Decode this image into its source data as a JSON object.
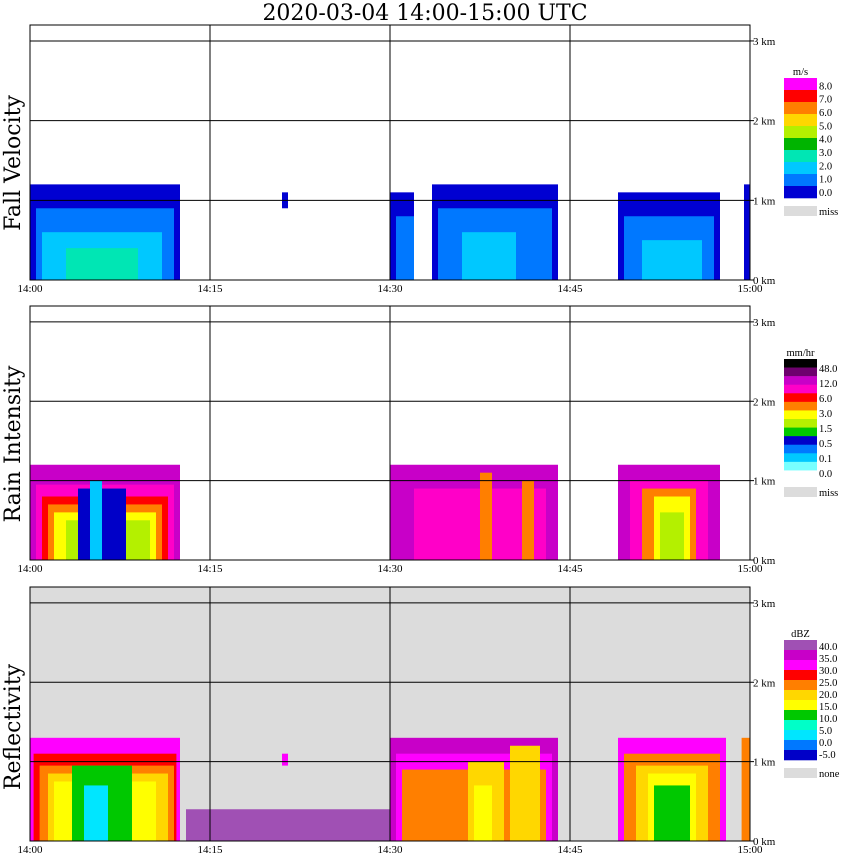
{
  "title": "2020-03-04   14:00-15:00 UTC",
  "colors": {
    "missing": "#dcdcdc",
    "grid": "#000000"
  },
  "chart_data": [
    {
      "type": "heatmap",
      "ylabel": "Fall Velocity",
      "unit": "m/s",
      "x_ticks": [
        "14:00",
        "14:15",
        "14:30",
        "14:45",
        "15:00"
      ],
      "y_ticks": [
        "0 km",
        "1 km",
        "2 km",
        "3 km"
      ],
      "ylim": [
        0,
        3.2
      ],
      "background": "#ffffff",
      "colorbar": {
        "labels": [
          "8.0",
          "7.0",
          "6.0",
          "5.0",
          "4.0",
          "3.0",
          "2.0",
          "1.0",
          "0.0",
          "miss"
        ],
        "colors": [
          "#ff00ff",
          "#ff0000",
          "#ff7f00",
          "#ffd700",
          "#b4f000",
          "#00b400",
          "#00e6b4",
          "#00c8ff",
          "#0078ff",
          "#0000d2",
          "#dcdcdc"
        ]
      },
      "cells": [
        {
          "x0": 0.0,
          "x1": 12.5,
          "y1": 1.2,
          "level": 1
        },
        {
          "x0": 0.5,
          "x1": 12.0,
          "y1": 0.9,
          "level": 2
        },
        {
          "x0": 1.0,
          "x1": 11.0,
          "y1": 0.6,
          "level": 3
        },
        {
          "x0": 3.0,
          "x1": 9.0,
          "y1": 0.4,
          "level": 4
        },
        {
          "x0": 21.0,
          "x1": 21.5,
          "y0": 0.9,
          "y1": 1.1,
          "level": 1
        },
        {
          "x0": 30.0,
          "x1": 32.0,
          "y1": 1.1,
          "level": 1
        },
        {
          "x0": 30.5,
          "x1": 32.0,
          "y1": 0.8,
          "level": 2
        },
        {
          "x0": 33.5,
          "x1": 44.0,
          "y1": 1.2,
          "level": 1
        },
        {
          "x0": 34.0,
          "x1": 43.5,
          "y1": 0.9,
          "level": 2
        },
        {
          "x0": 36.0,
          "x1": 40.5,
          "y1": 0.6,
          "level": 3
        },
        {
          "x0": 49.0,
          "x1": 57.5,
          "y1": 1.1,
          "level": 1
        },
        {
          "x0": 49.5,
          "x1": 57.0,
          "y1": 0.8,
          "level": 2
        },
        {
          "x0": 51.0,
          "x1": 56.0,
          "y1": 0.5,
          "level": 3
        },
        {
          "x0": 59.5,
          "x1": 60.0,
          "y1": 1.2,
          "level": 1
        }
      ]
    },
    {
      "type": "heatmap",
      "ylabel": "Rain Intensity",
      "unit": "mm/hr",
      "x_ticks": [
        "14:00",
        "14:15",
        "14:30",
        "14:45",
        "15:00"
      ],
      "y_ticks": [
        "0 km",
        "1 km",
        "2 km",
        "3 km"
      ],
      "ylim": [
        0,
        3.2
      ],
      "background": "#ffffff",
      "colorbar": {
        "labels": [
          "48.0",
          "12.0",
          "6.0",
          "3.0",
          "1.5",
          "0.5",
          "0.1",
          "0.0",
          "miss"
        ],
        "colors": [
          "#000000",
          "#6e006e",
          "#c800c8",
          "#ff00c8",
          "#ff0000",
          "#ff7f00",
          "#ffff00",
          "#b4f000",
          "#00c800",
          "#0000c8",
          "#0078ff",
          "#00c8ff",
          "#78ffff",
          "#ffffff",
          "#dcdcdc"
        ]
      },
      "cells": [
        {
          "x0": 0.0,
          "x1": 12.5,
          "y1": 1.2,
          "level": 12
        },
        {
          "x0": 0.5,
          "x1": 12.0,
          "y1": 0.95,
          "level": 11
        },
        {
          "x0": 1.0,
          "x1": 11.5,
          "y1": 0.8,
          "level": 10
        },
        {
          "x0": 1.5,
          "x1": 11.0,
          "y1": 0.7,
          "level": 9
        },
        {
          "x0": 2.0,
          "x1": 10.5,
          "y1": 0.6,
          "level": 8
        },
        {
          "x0": 3.0,
          "x1": 10.0,
          "y1": 0.5,
          "level": 7
        },
        {
          "x0": 4.0,
          "x1": 8.0,
          "y1": 0.9,
          "level": 5
        },
        {
          "x0": 5.0,
          "x1": 6.0,
          "y1": 1.0,
          "level": 3
        },
        {
          "x0": 30.0,
          "x1": 44.0,
          "y1": 1.2,
          "level": 12
        },
        {
          "x0": 32.0,
          "x1": 43.0,
          "y1": 0.9,
          "level": 11
        },
        {
          "x0": 37.5,
          "x1": 38.5,
          "y1": 1.1,
          "level": 9
        },
        {
          "x0": 41.0,
          "x1": 42.0,
          "y1": 1.0,
          "level": 9
        },
        {
          "x0": 49.0,
          "x1": 57.5,
          "y1": 1.2,
          "level": 12
        },
        {
          "x0": 50.0,
          "x1": 56.5,
          "y1": 1.0,
          "level": 11
        },
        {
          "x0": 51.0,
          "x1": 55.5,
          "y1": 0.9,
          "level": 9
        },
        {
          "x0": 52.0,
          "x1": 55.0,
          "y1": 0.8,
          "level": 8
        },
        {
          "x0": 52.5,
          "x1": 54.5,
          "y1": 0.6,
          "level": 7
        }
      ]
    },
    {
      "type": "heatmap",
      "ylabel": "Reflectivity",
      "unit": "dBZ",
      "x_ticks": [
        "14:00",
        "14:15",
        "14:30",
        "14:45",
        "15:00"
      ],
      "y_ticks": [
        "0 km",
        "1 km",
        "2 km",
        "3 km"
      ],
      "ylim": [
        0,
        3.2
      ],
      "background": "#dcdcdc",
      "colorbar": {
        "labels": [
          "40.0",
          "35.0",
          "30.0",
          "25.0",
          "20.0",
          "15.0",
          "10.0",
          "5.0",
          "0.0",
          "-5.0",
          "none"
        ],
        "colors": [
          "#a050b4",
          "#c800c8",
          "#ff00ff",
          "#ff0000",
          "#ff7f00",
          "#ffd700",
          "#ffff00",
          "#00c800",
          "#00ffc8",
          "#00e6ff",
          "#0078ff",
          "#0000c8",
          "#dcdcdc"
        ]
      },
      "cells": [
        {
          "x0": 0.0,
          "x1": 12.5,
          "y1": 1.3,
          "level": 10
        },
        {
          "x0": 0.3,
          "x1": 12.2,
          "y1": 1.1,
          "level": 9
        },
        {
          "x0": 0.8,
          "x1": 12.0,
          "y1": 0.95,
          "level": 8
        },
        {
          "x0": 1.5,
          "x1": 11.5,
          "y1": 0.85,
          "level": 7
        },
        {
          "x0": 2.0,
          "x1": 10.5,
          "y1": 0.75,
          "level": 6
        },
        {
          "x0": 3.5,
          "x1": 8.5,
          "y1": 0.95,
          "level": 5
        },
        {
          "x0": 4.5,
          "x1": 6.5,
          "y1": 0.7,
          "level": 3
        },
        {
          "x0": 13.0,
          "x1": 30.0,
          "y0": 0.0,
          "y1": 0.4,
          "level": 12
        },
        {
          "x0": 21.0,
          "x1": 21.5,
          "y0": 0.95,
          "y1": 1.1,
          "level": 10
        },
        {
          "x0": 30.0,
          "x1": 44.0,
          "y1": 1.3,
          "level": 11
        },
        {
          "x0": 30.5,
          "x1": 43.5,
          "y1": 1.1,
          "level": 10
        },
        {
          "x0": 31.0,
          "x1": 43.0,
          "y1": 0.9,
          "level": 8
        },
        {
          "x0": 36.5,
          "x1": 39.5,
          "y1": 1.0,
          "level": 7
        },
        {
          "x0": 37.0,
          "x1": 38.5,
          "y1": 0.7,
          "level": 6
        },
        {
          "x0": 40.0,
          "x1": 42.5,
          "y1": 1.2,
          "level": 7
        },
        {
          "x0": 49.0,
          "x1": 58.0,
          "y1": 1.3,
          "level": 10
        },
        {
          "x0": 49.5,
          "x1": 57.5,
          "y1": 1.1,
          "level": 8
        },
        {
          "x0": 50.5,
          "x1": 56.5,
          "y1": 0.95,
          "level": 7
        },
        {
          "x0": 51.5,
          "x1": 55.5,
          "y1": 0.85,
          "level": 6
        },
        {
          "x0": 52.0,
          "x1": 55.0,
          "y1": 0.7,
          "level": 5
        },
        {
          "x0": 59.3,
          "x1": 60.0,
          "y1": 1.3,
          "level": 8
        }
      ]
    }
  ]
}
